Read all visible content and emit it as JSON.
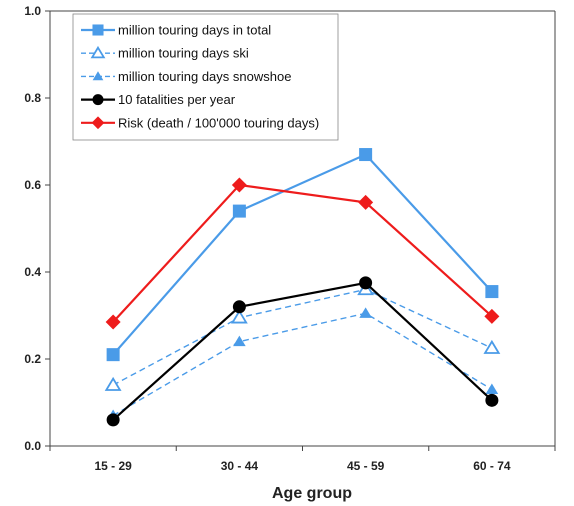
{
  "chart_data": {
    "type": "line",
    "xlabel": "Age group",
    "ylabel": "",
    "categories": [
      "15 - 29",
      "30 - 44",
      "45 - 59",
      "60 - 74"
    ],
    "ylim": [
      0,
      1.0
    ],
    "yticks": [
      "0.0",
      "0.2",
      "0.4",
      "0.6",
      "0.8",
      "1.0"
    ],
    "grid": false,
    "legend_position": "top-left",
    "series": [
      {
        "name": "million touring days in total",
        "values": [
          0.21,
          0.54,
          0.67,
          0.355
        ],
        "color": "#4a9be8",
        "dash": "solid",
        "marker": "square",
        "width": 2.2
      },
      {
        "name": "million touring days ski",
        "values": [
          0.14,
          0.295,
          0.36,
          0.225
        ],
        "color": "#4a9be8",
        "dash": "dashed",
        "marker": "triangle-open",
        "width": 1.4
      },
      {
        "name": "million touring days snowshoe",
        "values": [
          0.07,
          0.24,
          0.305,
          0.13
        ],
        "color": "#4a9be8",
        "dash": "dashed",
        "marker": "triangle-filled",
        "width": 1.4
      },
      {
        "name": "10 fatalities per year",
        "values": [
          0.06,
          0.32,
          0.375,
          0.105
        ],
        "color": "#000000",
        "dash": "solid",
        "marker": "circle",
        "width": 2.2
      },
      {
        "name": "Risk (death / 100'000 touring days)",
        "values": [
          0.285,
          0.6,
          0.56,
          0.298
        ],
        "color": "#ee1c1c",
        "dash": "solid",
        "marker": "diamond",
        "width": 2.2
      }
    ]
  }
}
